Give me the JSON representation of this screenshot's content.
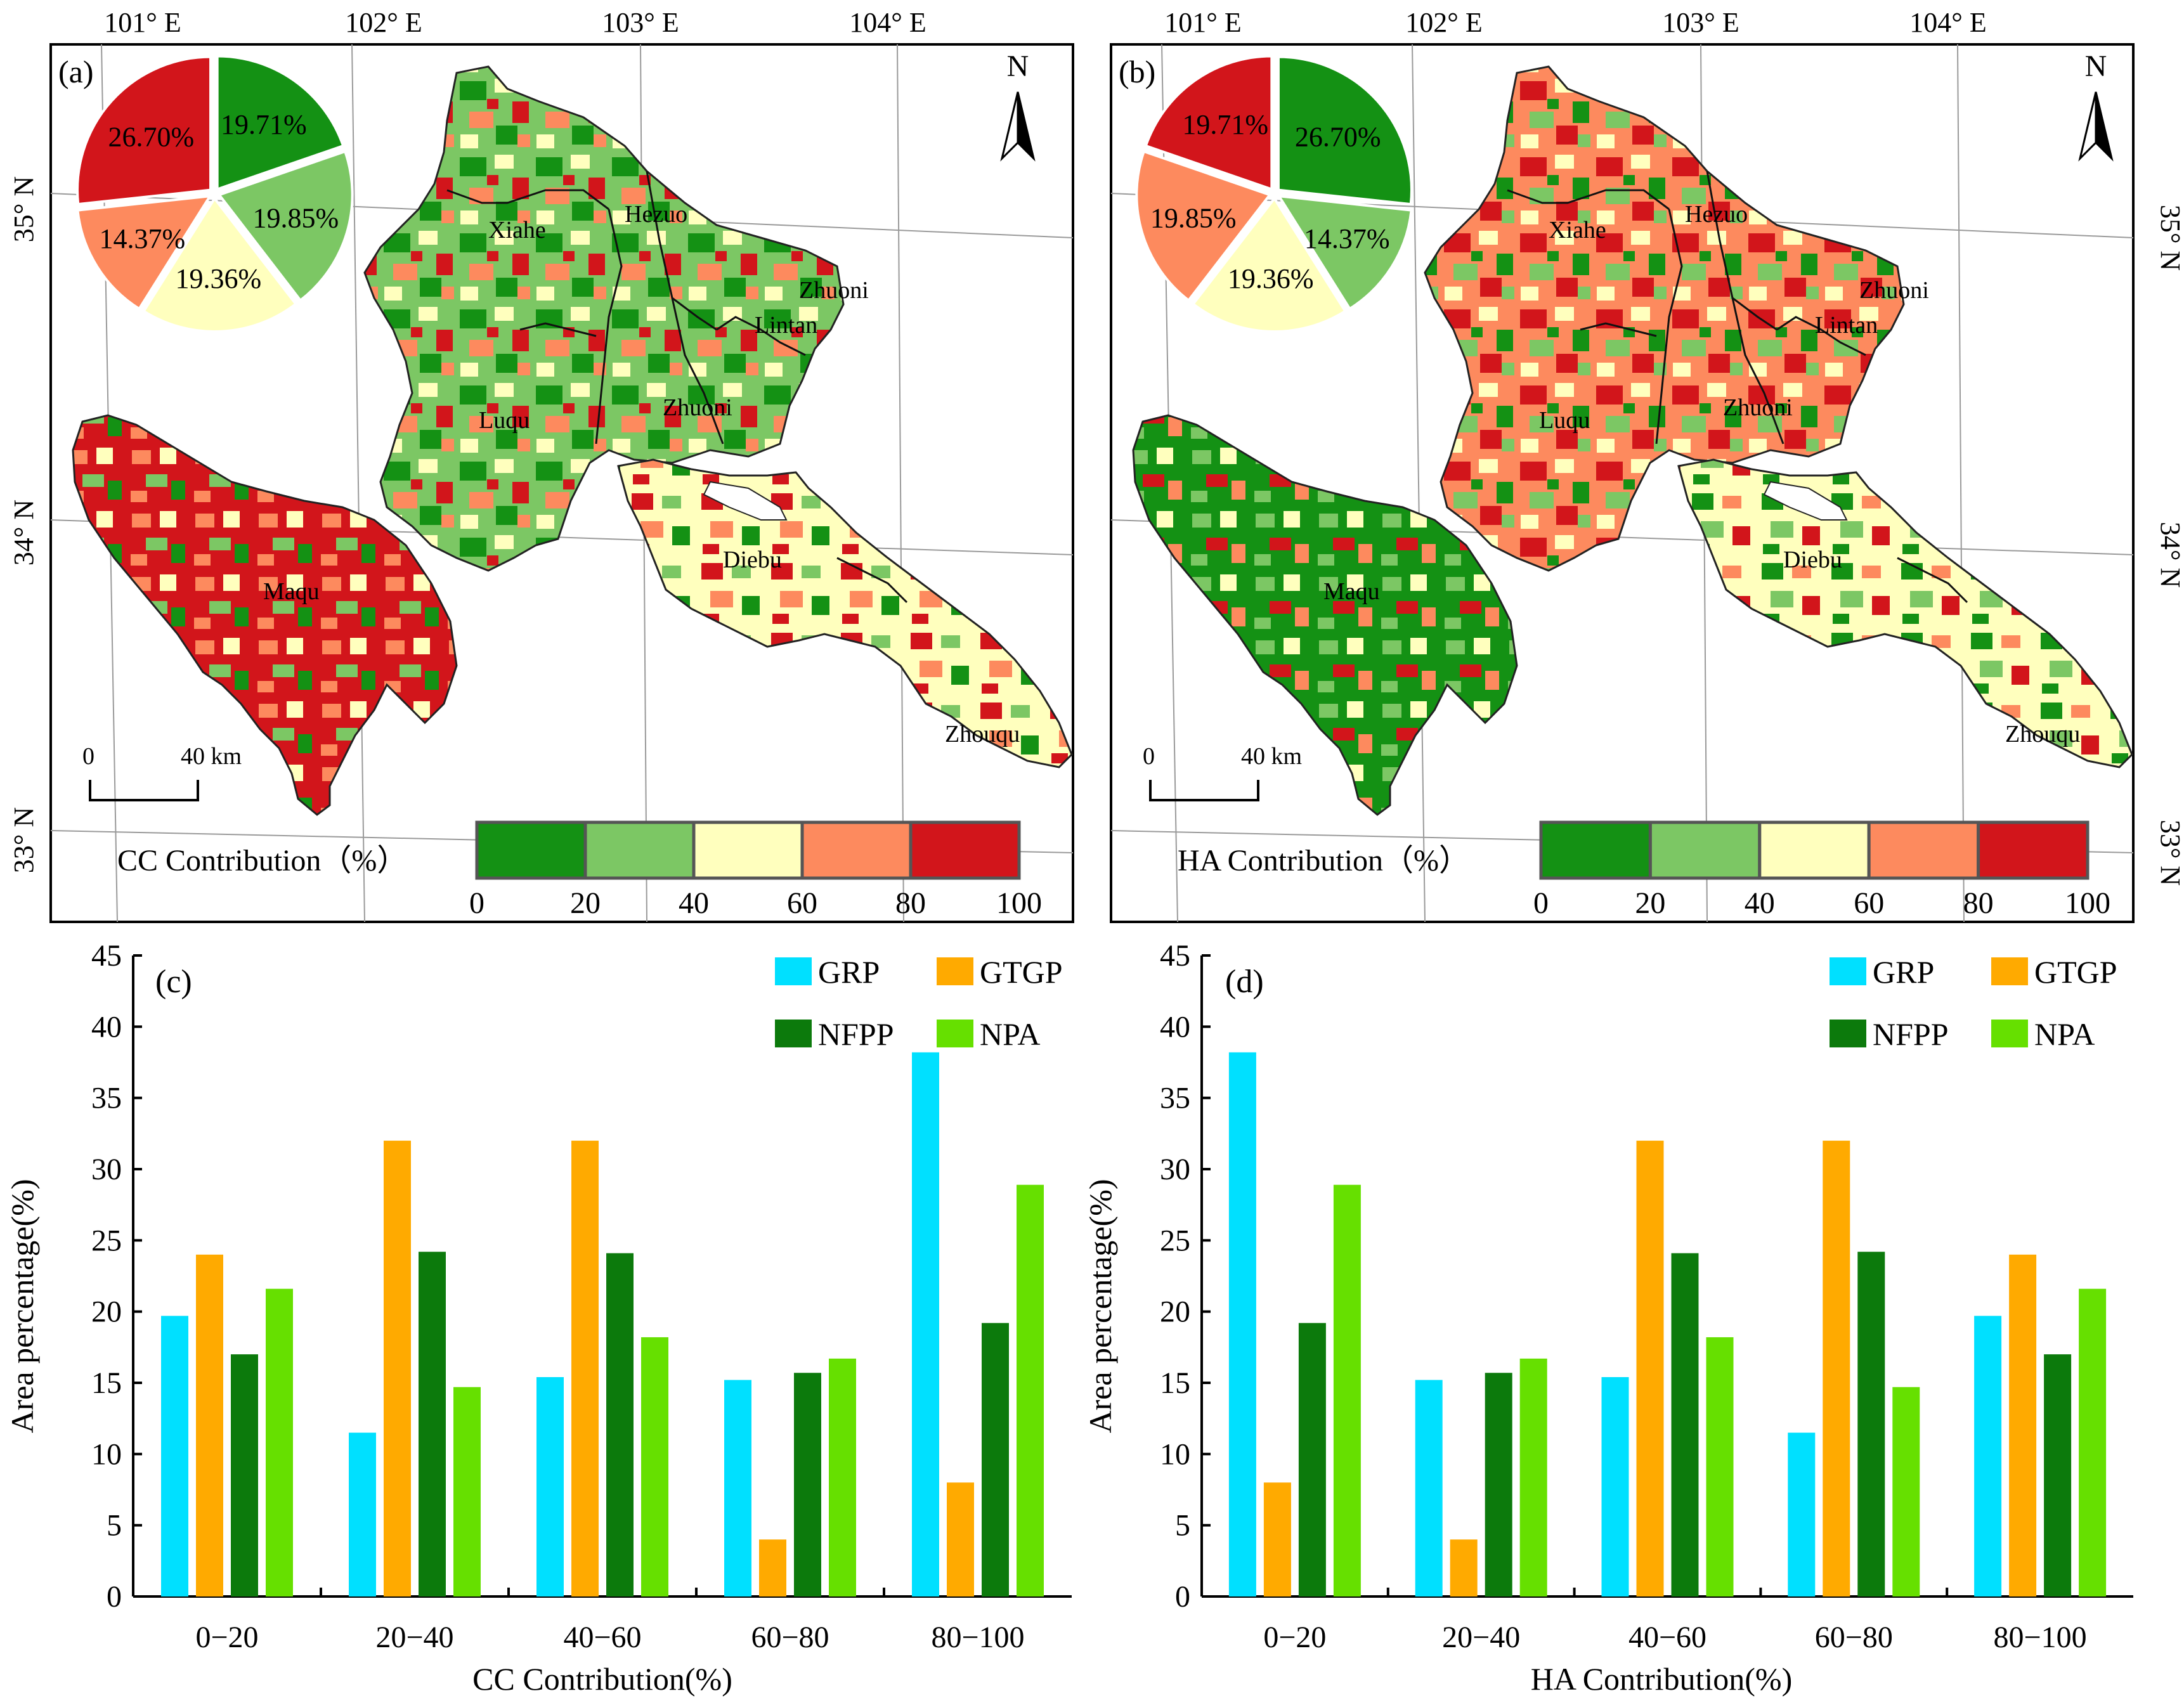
{
  "colors": {
    "ramp": [
      "#149114",
      "#7cc764",
      "#ffffbe",
      "#fd8a5e",
      "#d2151b"
    ],
    "GRP": "#00e0ff",
    "GTGP": "#ffaa00",
    "NFPP": "#0c7a0c",
    "NPA": "#66e000",
    "frame": "#000000",
    "graticule": "#9a9a9a"
  },
  "map_common": {
    "lon_labels": [
      "101° E",
      "102° E",
      "103° E",
      "104° E"
    ],
    "lat_labels": [
      "35° N",
      "34° N",
      "33° N"
    ],
    "north_label": "N",
    "scale_labels": [
      "0",
      "40 km"
    ],
    "legend_ticks": [
      "0",
      "20",
      "40",
      "60",
      "80",
      "100"
    ],
    "counties": [
      "Xiahe",
      "Hezuo",
      "Zhuoni",
      "Lintan",
      "Luqu",
      "Zhuoni",
      "Maqu",
      "Diebu",
      "Zhouqu"
    ]
  },
  "chart_data": [
    {
      "type": "pie",
      "panel": "(a)",
      "title": "CC Contribution（%）",
      "labels": [
        "0-20",
        "20-40",
        "40-60",
        "60-80",
        "80-100"
      ],
      "values": [
        19.71,
        19.85,
        19.36,
        14.37,
        26.7
      ],
      "value_labels": [
        "19.71%",
        "19.85%",
        "19.36%",
        "14.37%",
        "26.70%"
      ]
    },
    {
      "type": "pie",
      "panel": "(b)",
      "title": "HA Contribution（%）",
      "labels": [
        "0-20",
        "20-40",
        "40-60",
        "60-80",
        "80-100"
      ],
      "values": [
        26.7,
        14.37,
        19.36,
        19.85,
        19.71
      ],
      "value_labels": [
        "26.70%",
        "14.37%",
        "19.36%",
        "19.85%",
        "19.71%"
      ]
    },
    {
      "type": "bar",
      "panel": "(c)",
      "categories": [
        "0−20",
        "20−40",
        "40−60",
        "60−80",
        "80−100"
      ],
      "series": [
        {
          "name": "GRP",
          "values": [
            19.7,
            11.5,
            15.4,
            15.2,
            38.2
          ]
        },
        {
          "name": "GTGP",
          "values": [
            24.0,
            32.0,
            32.0,
            4.0,
            8.0
          ]
        },
        {
          "name": "NFPP",
          "values": [
            17.0,
            24.2,
            24.1,
            15.7,
            19.2
          ]
        },
        {
          "name": "NPA",
          "values": [
            21.6,
            14.7,
            18.2,
            16.7,
            28.9
          ]
        }
      ],
      "xlabel": "CC Contribution(%)",
      "ylabel": "Area percentage(%)",
      "ylim": [
        0,
        45
      ],
      "yticks": [
        0,
        5,
        10,
        15,
        20,
        25,
        30,
        35,
        40,
        45
      ]
    },
    {
      "type": "bar",
      "panel": "(d)",
      "categories": [
        "0−20",
        "20−40",
        "40−60",
        "60−80",
        "80−100"
      ],
      "series": [
        {
          "name": "GRP",
          "values": [
            38.2,
            15.2,
            15.4,
            11.5,
            19.7
          ]
        },
        {
          "name": "GTGP",
          "values": [
            8.0,
            4.0,
            32.0,
            32.0,
            24.0
          ]
        },
        {
          "name": "NFPP",
          "values": [
            19.2,
            15.7,
            24.1,
            24.2,
            17.0
          ]
        },
        {
          "name": "NPA",
          "values": [
            28.9,
            16.7,
            18.2,
            14.7,
            21.6
          ]
        }
      ],
      "xlabel": "HA Contribution(%)",
      "ylabel": "Area percentage(%)",
      "ylim": [
        0,
        45
      ],
      "yticks": [
        0,
        5,
        10,
        15,
        20,
        25,
        30,
        35,
        40,
        45
      ]
    }
  ]
}
